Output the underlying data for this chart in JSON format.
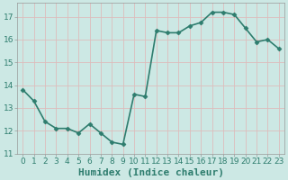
{
  "x": [
    0,
    1,
    2,
    3,
    4,
    5,
    6,
    7,
    8,
    9,
    10,
    11,
    12,
    13,
    14,
    15,
    16,
    17,
    18,
    19,
    20,
    21,
    22,
    23
  ],
  "y": [
    13.8,
    13.3,
    12.4,
    12.1,
    12.1,
    11.9,
    12.3,
    11.9,
    11.5,
    11.4,
    13.6,
    13.5,
    16.4,
    16.3,
    16.3,
    16.6,
    16.75,
    17.2,
    17.2,
    17.1,
    16.5,
    15.9,
    16.0,
    15.6
  ],
  "line_color": "#2e7d6e",
  "marker": "D",
  "marker_size": 2.5,
  "bg_color": "#cce8e4",
  "grid_color": "#ddbcbc",
  "xlabel": "Humidex (Indice chaleur)",
  "xlabel_fontsize": 8,
  "ylim": [
    11,
    17.6
  ],
  "yticks": [
    11,
    12,
    13,
    14,
    15,
    16,
    17
  ],
  "xtick_labels": [
    "0",
    "1",
    "2",
    "3",
    "4",
    "5",
    "6",
    "7",
    "8",
    "9",
    "10",
    "11",
    "12",
    "13",
    "14",
    "15",
    "16",
    "17",
    "18",
    "19",
    "20",
    "21",
    "22",
    "23"
  ],
  "tick_fontsize": 6.5,
  "line_width": 1.2
}
